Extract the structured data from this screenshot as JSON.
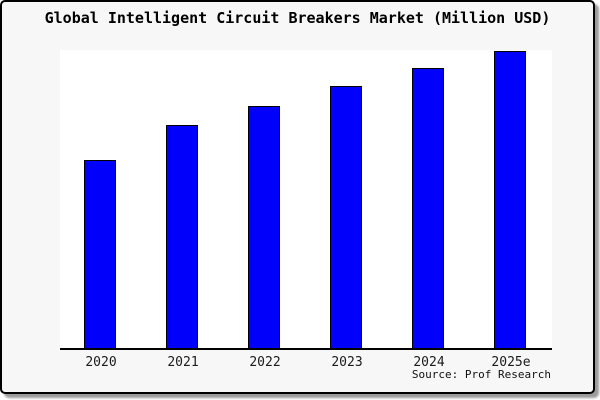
{
  "card": {
    "title": "Global Intelligent Circuit Breakers Market (Million USD)",
    "source": "Source: Prof Research"
  },
  "colors": {
    "background": "#f7f7f7",
    "plot_background": "#ffffff",
    "bar_fill": "#0000fb",
    "bar_outline": "#000000",
    "axis": "#000000",
    "border": "#000000"
  },
  "chart_data": {
    "type": "bar",
    "title": "Global Intelligent Circuit Breakers Market (Million USD)",
    "categories": [
      "2020",
      "2021",
      "2022",
      "2023",
      "2024",
      "2025e"
    ],
    "values_relative_pct_of_max": [
      63.2,
      75.1,
      81.6,
      88.1,
      94.2,
      100
    ],
    "bar_height_pct_of_plot": [
      63.0,
      74.9,
      81.3,
      87.8,
      93.9,
      99.7
    ],
    "xlabel": "",
    "ylabel": "",
    "y_axis_labeled": false,
    "y_tick_labels": [],
    "grid": false,
    "legend": null,
    "source_note": "Source: Prof Research"
  }
}
